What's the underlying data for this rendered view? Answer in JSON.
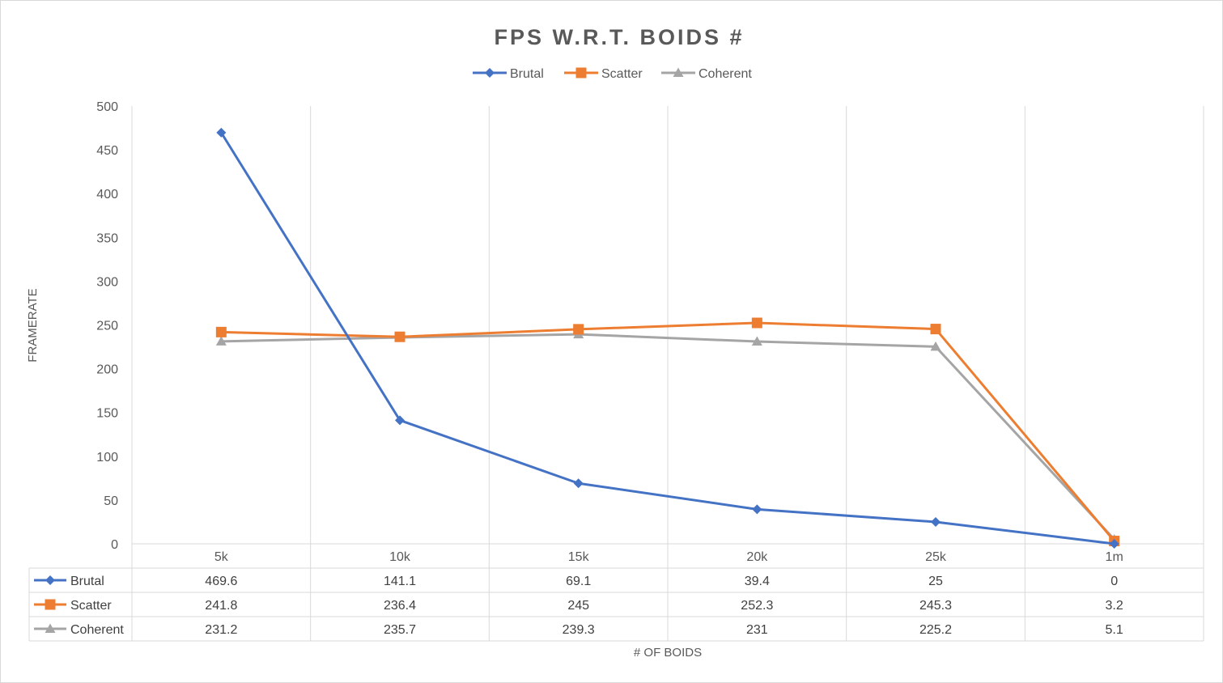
{
  "chart_data": {
    "type": "line",
    "title": "FPS W.R.T. BOIDS #",
    "xlabel": "# OF BOIDS",
    "ylabel": "FRAMERATE",
    "categories": [
      "5k",
      "10k",
      "15k",
      "20k",
      "25k",
      "1m"
    ],
    "ylim": [
      0,
      500
    ],
    "yticks": [
      0,
      50,
      100,
      150,
      200,
      250,
      300,
      350,
      400,
      450,
      500
    ],
    "grid": "vertical",
    "legend": "top",
    "data_table": true,
    "series": [
      {
        "name": "Brutal",
        "values": [
          469.6,
          141.1,
          69.1,
          39.4,
          25,
          0
        ],
        "color": "#4472c4",
        "marker": "diamond"
      },
      {
        "name": "Scatter",
        "values": [
          241.8,
          236.4,
          245,
          252.3,
          245.3,
          3.2
        ],
        "color": "#ed7d31",
        "marker": "square"
      },
      {
        "name": "Coherent",
        "values": [
          231.2,
          235.7,
          239.3,
          231,
          225.2,
          5.1
        ],
        "color": "#a5a5a5",
        "marker": "triangle"
      }
    ]
  }
}
